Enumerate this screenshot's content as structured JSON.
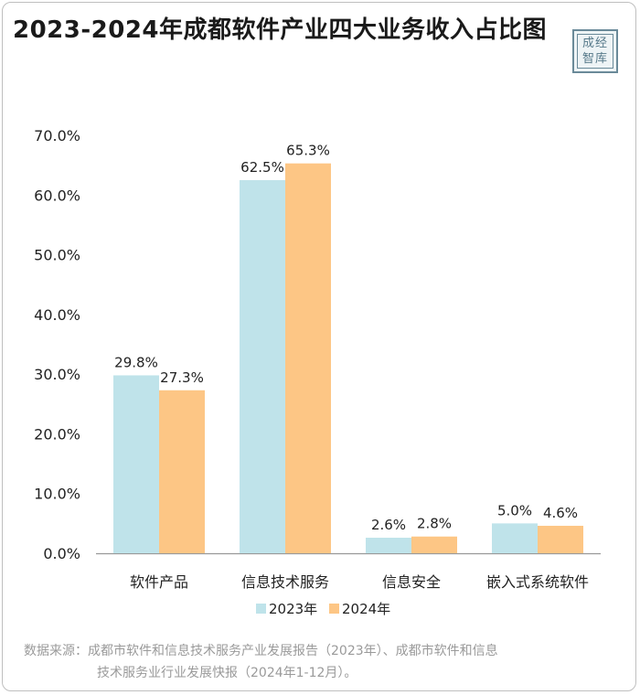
{
  "title": "2023-2024年成都软件产业四大业务收入占比图",
  "logo_text": "成经智库",
  "source_line1": "数据来源：成都市软件和信息技术服务产业发展报告（2023年）、成都市软件和信息",
  "source_line2": "技术服务业行业发展快报（2024年1-12月）。",
  "colors": {
    "s2023": "#bfe3ea",
    "s2024": "#fdc685",
    "axis": "#999999",
    "text": "#222222"
  },
  "chart_data": {
    "type": "bar",
    "title": "2023-2024年成都软件产业四大业务收入占比图",
    "categories": [
      "软件产品",
      "信息技术服务",
      "信息安全",
      "嵌入式系统软件"
    ],
    "series": [
      {
        "name": "2023年",
        "values": [
          29.8,
          62.5,
          2.6,
          5.0
        ]
      },
      {
        "name": "2024年",
        "values": [
          27.3,
          65.3,
          2.8,
          4.6
        ]
      }
    ],
    "ylim": [
      0,
      70
    ],
    "yticks": [
      "0.0%",
      "10.0%",
      "20.0%",
      "30.0%",
      "40.0%",
      "50.0%",
      "60.0%",
      "70.0%"
    ],
    "data_labels": [
      [
        "29.8%",
        "62.5%",
        "2.6%",
        "5.0%"
      ],
      [
        "27.3%",
        "65.3%",
        "2.8%",
        "4.6%"
      ]
    ],
    "legend_position": "bottom",
    "grid": false
  }
}
